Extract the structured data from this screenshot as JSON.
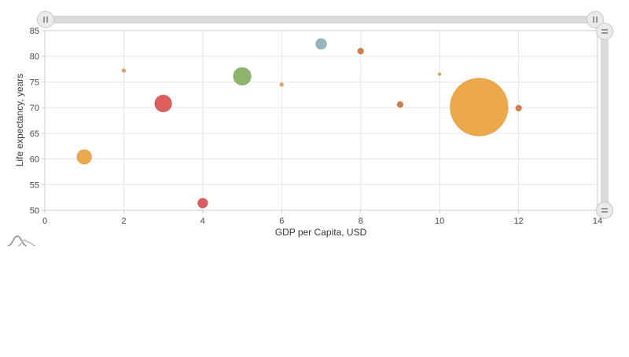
{
  "chart_data": {
    "type": "scatter",
    "subtype": "bubble",
    "title": "",
    "xlabel": "GDP per Capita, USD",
    "ylabel": "Life expectancy, years",
    "xlim": [
      0,
      14
    ],
    "ylim": [
      50,
      85
    ],
    "x_ticks": [
      0,
      2,
      4,
      6,
      8,
      10,
      12,
      14
    ],
    "y_ticks": [
      50,
      55,
      60,
      65,
      70,
      75,
      80,
      85
    ],
    "grid": true,
    "legend": "none",
    "points": [
      {
        "x": 1,
        "y": 60.4,
        "r": 9.5,
        "color": "#ECA84B"
      },
      {
        "x": 2,
        "y": 77.2,
        "r": 2.5,
        "color": "#DEA26B"
      },
      {
        "x": 3,
        "y": 70.8,
        "r": 11,
        "color": "#DC5F5D"
      },
      {
        "x": 4,
        "y": 51.4,
        "r": 6.5,
        "color": "#DC5F5D"
      },
      {
        "x": 5,
        "y": 76.1,
        "r": 11.5,
        "color": "#8FB56A"
      },
      {
        "x": 6,
        "y": 74.5,
        "r": 2.5,
        "color": "#DEA26B"
      },
      {
        "x": 7,
        "y": 82.4,
        "r": 7,
        "color": "#95B5BD"
      },
      {
        "x": 8,
        "y": 81.0,
        "r": 4,
        "color": "#CE7F4E"
      },
      {
        "x": 9,
        "y": 70.6,
        "r": 4,
        "color": "#CE7F4E"
      },
      {
        "x": 10,
        "y": 76.5,
        "r": 2,
        "color": "#DEA26B"
      },
      {
        "x": 11,
        "y": 70.1,
        "r": 37,
        "color": "#ECA84B"
      },
      {
        "x": 12,
        "y": 69.9,
        "r": 4,
        "color": "#CE7F4E"
      }
    ]
  },
  "colors": {
    "plot_border": "#cccccc",
    "gridline": "#e6e6e6",
    "tick_mark": "#cccccc",
    "tick_label": "#454545",
    "scroll_track": "#dadada",
    "scroll_handle": "#ebebeb"
  },
  "scroller": {
    "horizontal": {
      "left_grip": "pause-grip",
      "right_grip": "pause-grip"
    },
    "vertical": {
      "top_grip": "equals-grip",
      "bottom_grip": "equals-grip"
    }
  },
  "logo": "area-chart-watermark"
}
